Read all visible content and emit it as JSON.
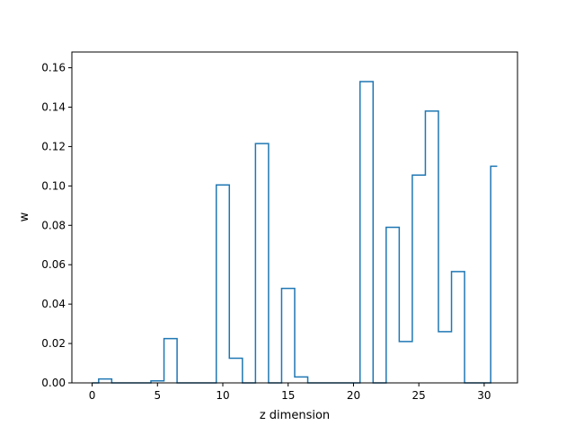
{
  "chart_data": {
    "type": "step",
    "title": "",
    "xlabel": "z dimension",
    "ylabel": "w",
    "xlim": [
      -1.55,
      32.55
    ],
    "ylim": [
      0,
      0.168
    ],
    "grid": false,
    "legend": "none",
    "line_color": "#1f77b4",
    "step_where": "mid",
    "x": [
      0,
      1,
      2,
      3,
      4,
      5,
      6,
      7,
      8,
      9,
      10,
      11,
      12,
      13,
      14,
      15,
      16,
      17,
      18,
      19,
      20,
      21,
      22,
      23,
      24,
      25,
      26,
      27,
      28,
      29,
      30,
      31
    ],
    "values": [
      0.0,
      0.002,
      0.0,
      0.0,
      0.0,
      0.001,
      0.0225,
      0.0,
      0.0,
      0.0,
      0.1005,
      0.0125,
      0.0,
      0.1215,
      0.0,
      0.048,
      0.003,
      0.0,
      0.0,
      0.0,
      0.0,
      0.153,
      0.0,
      0.079,
      0.021,
      0.1055,
      0.138,
      0.026,
      0.0565,
      0.0,
      0.0,
      0.11
    ],
    "x_ticks": [
      "0",
      "5",
      "10",
      "15",
      "20",
      "25",
      "30"
    ],
    "y_ticks": [
      "0.00",
      "0.02",
      "0.04",
      "0.06",
      "0.08",
      "0.10",
      "0.12",
      "0.14",
      "0.16"
    ]
  }
}
